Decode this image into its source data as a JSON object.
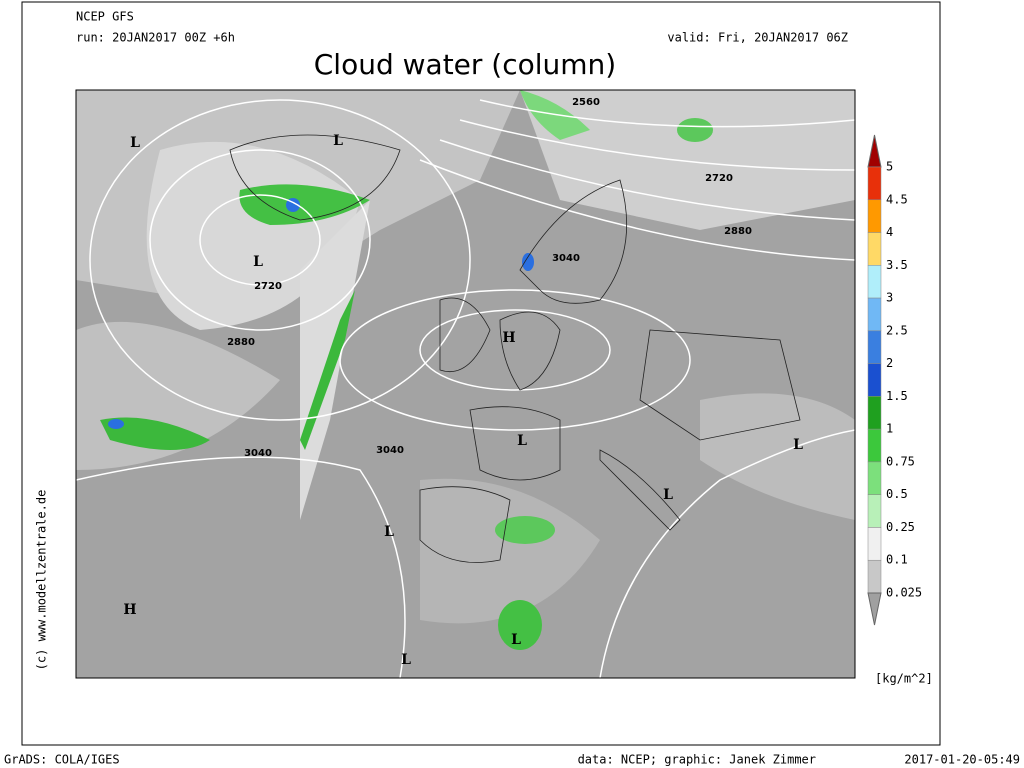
{
  "header": {
    "model": "NCEP GFS",
    "run": "run: 20JAN2017 00Z +6h",
    "valid": "valid: Fri, 20JAN2017 06Z",
    "title": "Cloud water (column)"
  },
  "map": {
    "labels": [
      "L",
      "L",
      "L",
      "2720",
      "2880",
      "3040",
      "H",
      "3040",
      "L",
      "L",
      "H",
      "L",
      "L",
      "L",
      "L",
      "2560",
      "2720",
      "2880",
      "3040"
    ]
  },
  "colorbar": {
    "labels": [
      "5",
      "4.5",
      "4",
      "3.5",
      "3",
      "2.5",
      "2",
      "1.5",
      "1",
      "0.75",
      "0.5",
      "0.25",
      "0.1",
      "0.025"
    ],
    "unit": "[kg/m^2]"
  },
  "side": "(c) www.modellzentrale.de",
  "footer": {
    "left": "GrADS: COLA/IGES",
    "center": "data: NCEP; graphic: Janek Zimmer",
    "right": "2017-01-20-05:49"
  }
}
